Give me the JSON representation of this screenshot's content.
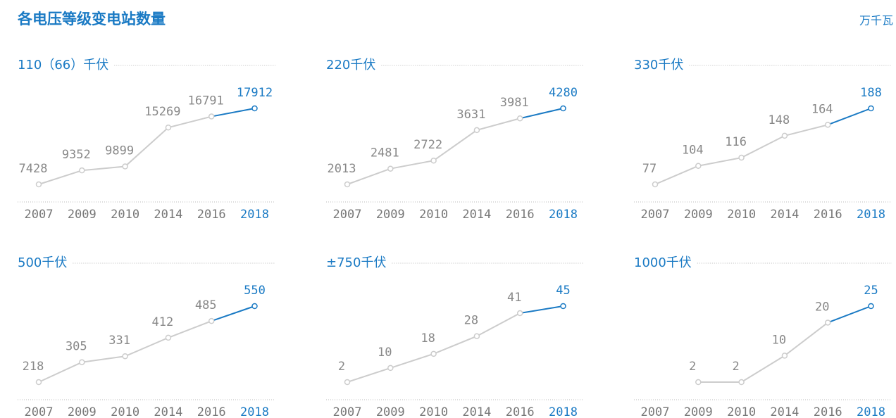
{
  "title": "各电压等级变电站数量",
  "unit": "万千瓦",
  "chart_data": [
    {
      "type": "line",
      "title": "110（66）千伏",
      "categories": [
        "2007",
        "2009",
        "2010",
        "2014",
        "2016",
        "2018"
      ],
      "color": "#cccccc",
      "highlight_color": "#1a7ac4",
      "series": [
        {
          "values": [
            7428,
            9352,
            9899,
            15269,
            16791,
            17912
          ]
        }
      ]
    },
    {
      "type": "line",
      "title": "220千伏",
      "categories": [
        "2007",
        "2009",
        "2010",
        "2014",
        "2016",
        "2018"
      ],
      "color": "#cccccc",
      "highlight_color": "#1a7ac4",
      "series": [
        {
          "values": [
            2013,
            2481,
            2722,
            3631,
            3981,
            4280
          ]
        }
      ]
    },
    {
      "type": "line",
      "title": "330千伏",
      "categories": [
        "2007",
        "2009",
        "2010",
        "2014",
        "2016",
        "2018"
      ],
      "color": "#cccccc",
      "highlight_color": "#1a7ac4",
      "series": [
        {
          "values": [
            77,
            104,
            116,
            148,
            164,
            188
          ]
        }
      ]
    },
    {
      "type": "line",
      "title": "500千伏",
      "categories": [
        "2007",
        "2009",
        "2010",
        "2014",
        "2016",
        "2018"
      ],
      "color": "#cccccc",
      "highlight_color": "#1a7ac4",
      "series": [
        {
          "values": [
            218,
            305,
            331,
            412,
            485,
            550
          ]
        }
      ]
    },
    {
      "type": "line",
      "title": "±750千伏",
      "categories": [
        "2007",
        "2009",
        "2010",
        "2014",
        "2016",
        "2018"
      ],
      "color": "#cccccc",
      "highlight_color": "#1a7ac4",
      "series": [
        {
          "values": [
            2,
            10,
            18,
            28,
            41,
            45
          ]
        }
      ]
    },
    {
      "type": "line",
      "title": "1000千伏",
      "categories": [
        "2007",
        "2009",
        "2010",
        "2014",
        "2016",
        "2018"
      ],
      "color": "#cccccc",
      "highlight_color": "#1a7ac4",
      "series": [
        {
          "values": [
            null,
            2,
            2,
            10,
            20,
            25
          ]
        }
      ]
    }
  ]
}
